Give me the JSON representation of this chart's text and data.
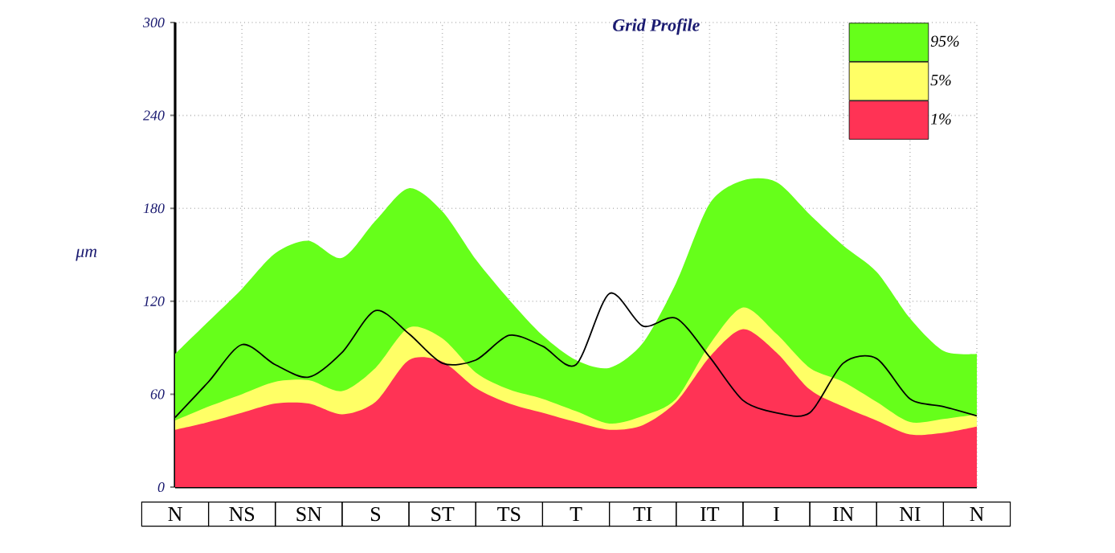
{
  "chart_data": {
    "type": "area",
    "title": "Grid Profile",
    "ylabel": "μm",
    "categories": [
      "N",
      null,
      "NS",
      null,
      "SN",
      null,
      "S",
      null,
      "ST",
      null,
      "TS",
      null,
      "T",
      null,
      "TI",
      null,
      "IT",
      null,
      "I",
      null,
      "IN",
      null,
      "NI",
      null,
      "N"
    ],
    "ylim": [
      0,
      300
    ],
    "yticks": [
      0,
      60,
      120,
      180,
      240,
      300
    ],
    "grid": true,
    "legend": "top right",
    "series": [
      {
        "name": "95%",
        "color": "#66ff1a",
        "values": [
          86,
          107,
          128,
          151,
          159,
          148,
          172,
          193,
          178,
          147,
          121,
          98,
          82,
          77,
          93,
          132,
          183,
          198,
          197,
          176,
          156,
          139,
          109,
          88,
          86
        ]
      },
      {
        "name": "5%",
        "color": "#ffff66",
        "values": [
          43,
          52,
          60,
          68,
          69,
          62,
          77,
          103,
          96,
          74,
          63,
          57,
          49,
          41,
          46,
          57,
          92,
          116,
          99,
          77,
          68,
          55,
          42,
          44,
          47
        ]
      },
      {
        "name": "1%",
        "color": "#ff3355",
        "values": [
          37,
          42,
          48,
          54,
          54,
          47,
          55,
          82,
          81,
          64,
          54,
          48,
          42,
          37,
          40,
          55,
          84,
          102,
          87,
          63,
          52,
          43,
          34,
          35,
          39
        ]
      },
      {
        "type": "line",
        "color": "#000000",
        "values": [
          45,
          68,
          92,
          79,
          71,
          87,
          114,
          99,
          80,
          82,
          98,
          91,
          79,
          125,
          104,
          109,
          84,
          56,
          48,
          48,
          80,
          83,
          57,
          52,
          46
        ]
      }
    ]
  }
}
